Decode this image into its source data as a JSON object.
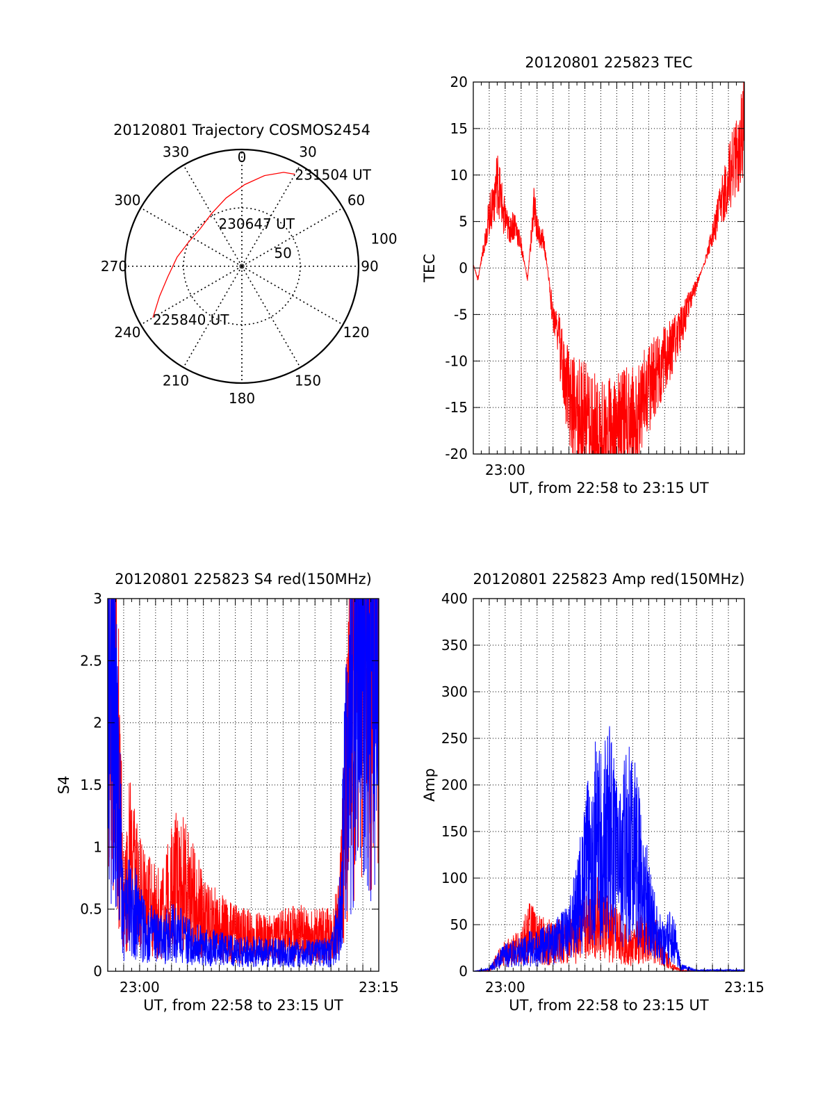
{
  "chart_data": [
    {
      "type": "polar",
      "title": "20120801 Trajectory COSMOS2454",
      "angle_labels": [
        "0",
        "30",
        "60",
        "90",
        "120",
        "150",
        "180",
        "210",
        "240",
        "270",
        "300",
        "330"
      ],
      "angle_values": [
        0,
        30,
        60,
        90,
        120,
        150,
        180,
        210,
        240,
        270,
        300,
        330
      ],
      "radial_labels": [
        "50",
        "100"
      ],
      "radial_values": [
        50,
        100
      ],
      "trajectory": {
        "color": "#ff0000",
        "points": [
          {
            "az": 240,
            "r": 88
          },
          {
            "az": 250,
            "r": 75
          },
          {
            "az": 262,
            "r": 64
          },
          {
            "az": 278,
            "r": 56
          },
          {
            "az": 295,
            "r": 50
          },
          {
            "az": 312,
            "r": 48
          },
          {
            "az": 330,
            "r": 52
          },
          {
            "az": 347,
            "r": 60
          },
          {
            "az": 2,
            "r": 70
          },
          {
            "az": 14,
            "r": 80
          },
          {
            "az": 24,
            "r": 88
          },
          {
            "az": 30,
            "r": 91
          }
        ]
      },
      "annotations": [
        {
          "text": "225840 UT",
          "az": 240,
          "r": 88
        },
        {
          "text": "230647 UT",
          "az": 330,
          "r": 40
        },
        {
          "text": "231504 UT",
          "az": 30,
          "r": 91
        }
      ]
    },
    {
      "type": "line",
      "title": "20120801 225823 TEC",
      "xlabel": "UT, from 22:58 to 23:15 UT",
      "ylabel": "TEC",
      "xlim": [
        0,
        17
      ],
      "ylim": [
        -20,
        20
      ],
      "xtick_labels": [
        {
          "x": 2,
          "label": "23:00"
        }
      ],
      "ytick_labels": [
        "-20",
        "-15",
        "-10",
        "-5",
        "0",
        "5",
        "10",
        "15",
        "20"
      ],
      "grid": true,
      "series": [
        {
          "color": "#ff0000",
          "x": [
            0.0,
            0.3,
            0.6,
            0.9,
            1.2,
            1.5,
            1.9,
            2.2,
            2.6,
            3.0,
            3.4,
            3.8,
            4.1,
            4.4,
            4.7,
            5.0,
            5.3,
            5.7,
            6.0,
            6.5,
            7.0,
            7.5,
            8.0,
            8.5,
            9.0,
            9.5,
            10.0,
            10.5,
            11.0,
            11.5,
            12.0,
            12.5,
            13.0,
            13.5,
            14.0,
            14.5,
            15.0,
            15.3,
            15.6,
            16.0,
            16.3,
            16.6,
            17.0
          ],
          "y": [
            0.3,
            -1.0,
            1.5,
            4.0,
            6.0,
            8.0,
            5.0,
            3.5,
            4.0,
            2.0,
            -1.0,
            5.5,
            3.0,
            2.5,
            -0.5,
            -4.5,
            -6.0,
            -10.0,
            -12.0,
            -13.0,
            -13.5,
            -15.0,
            -16.0,
            -15.5,
            -15.0,
            -14.5,
            -14.0,
            -12.5,
            -11.0,
            -9.5,
            -8.5,
            -7.0,
            -5.5,
            -3.5,
            -1.5,
            0.5,
            3.0,
            4.5,
            6.0,
            8.0,
            9.5,
            10.0,
            13.5
          ]
        }
      ]
    },
    {
      "type": "line",
      "title": "20120801 225823 S4 red(150MHz)",
      "xlabel": "UT, from 22:58 to 23:15 UT",
      "ylabel": "S4",
      "xlim": [
        0,
        17
      ],
      "ylim": [
        0,
        3
      ],
      "xtick_labels": [
        {
          "x": 2,
          "label": "23:00"
        },
        {
          "x": 17,
          "label": "23:15"
        }
      ],
      "ytick_labels": [
        "0",
        "0.5",
        "1",
        "1.5",
        "2",
        "2.5",
        "3"
      ],
      "grid": true,
      "series": [
        {
          "color": "#ff0000",
          "x": [
            0.0,
            0.6,
            1.0,
            1.4,
            1.8,
            2.2,
            2.8,
            3.4,
            3.8,
            4.4,
            5.0,
            5.5,
            6.0,
            7.0,
            8.0,
            9.0,
            10.0,
            11.0,
            12.0,
            13.0,
            14.0,
            14.5,
            15.0,
            15.5,
            16.0,
            16.5,
            17.0
          ],
          "y": [
            3.0,
            1.8,
            0.5,
            0.9,
            0.7,
            0.6,
            0.5,
            0.45,
            0.6,
            0.75,
            0.65,
            0.55,
            0.45,
            0.35,
            0.3,
            0.28,
            0.25,
            0.28,
            0.3,
            0.3,
            0.28,
            0.4,
            1.5,
            2.5,
            3.0,
            2.8,
            3.0
          ]
        },
        {
          "color": "#0000ff",
          "x": [
            0.0,
            0.6,
            1.0,
            1.4,
            1.8,
            2.2,
            2.8,
            3.4,
            3.8,
            4.4,
            5.0,
            5.5,
            6.0,
            7.0,
            8.0,
            9.0,
            10.0,
            11.0,
            12.0,
            13.0,
            14.0,
            14.5,
            15.0,
            15.5,
            16.0,
            16.5,
            17.0
          ],
          "y": [
            2.5,
            1.5,
            0.4,
            0.55,
            0.45,
            0.35,
            0.3,
            0.25,
            0.3,
            0.3,
            0.25,
            0.22,
            0.2,
            0.18,
            0.16,
            0.16,
            0.15,
            0.15,
            0.15,
            0.15,
            0.15,
            0.35,
            1.6,
            2.6,
            3.0,
            2.7,
            2.8
          ]
        }
      ]
    },
    {
      "type": "line",
      "title": "20120801 225823 Amp red(150MHz)",
      "xlabel": "UT, from 22:58 to 23:15 UT",
      "ylabel": "Amp",
      "xlim": [
        0,
        17
      ],
      "ylim": [
        0,
        400
      ],
      "xtick_labels": [
        {
          "x": 2,
          "label": "23:00"
        },
        {
          "x": 17,
          "label": "23:15"
        }
      ],
      "ytick_labels": [
        "0",
        "50",
        "100",
        "150",
        "200",
        "250",
        "300",
        "350",
        "400"
      ],
      "grid": true,
      "series": [
        {
          "color": "#ff0000",
          "x": [
            0.0,
            1.0,
            1.5,
            2.0,
            3.0,
            3.5,
            4.0,
            5.0,
            6.0,
            7.0,
            7.5,
            8.0,
            8.5,
            9.0,
            9.5,
            10.0,
            10.5,
            11.0,
            11.5,
            12.0,
            12.5,
            13.0,
            14.0,
            15.0,
            16.0,
            17.0
          ],
          "y": [
            0,
            1,
            12,
            20,
            25,
            45,
            35,
            30,
            35,
            45,
            60,
            55,
            45,
            40,
            30,
            25,
            35,
            40,
            30,
            15,
            5,
            1,
            0,
            0,
            0,
            0
          ]
        },
        {
          "color": "#0000ff",
          "x": [
            0.0,
            1.0,
            1.5,
            2.0,
            3.0,
            3.5,
            4.0,
            5.0,
            6.0,
            7.0,
            7.5,
            8.0,
            8.5,
            9.0,
            9.5,
            10.0,
            10.5,
            11.0,
            11.5,
            12.0,
            12.5,
            13.0,
            14.0,
            15.0,
            16.0,
            17.0
          ],
          "y": [
            0,
            2,
            10,
            18,
            20,
            25,
            25,
            30,
            40,
            100,
            140,
            130,
            150,
            120,
            130,
            140,
            100,
            70,
            40,
            30,
            40,
            5,
            1,
            1,
            1,
            1
          ]
        }
      ]
    }
  ]
}
